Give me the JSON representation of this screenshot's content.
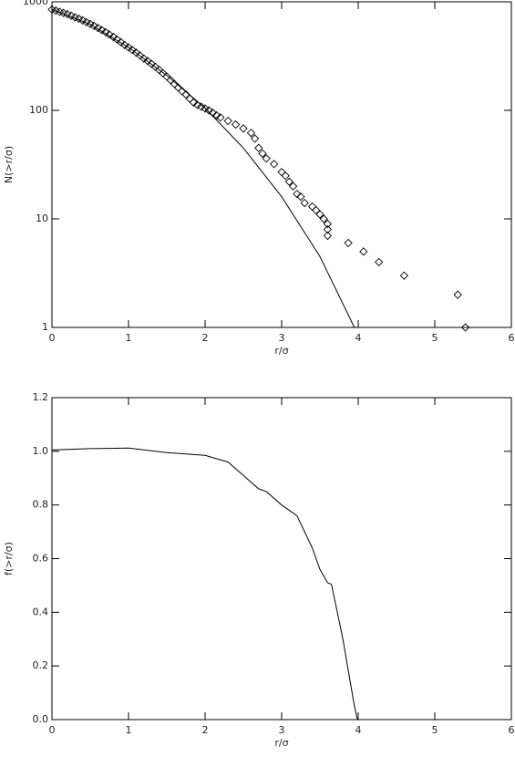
{
  "chart_data": [
    {
      "type": "scatter",
      "xlabel": "r/σ",
      "ylabel": "N(>r/σ)",
      "ylog": true,
      "xlim": [
        0,
        6
      ],
      "ylim": [
        1,
        1000
      ],
      "xticks": [
        0,
        1,
        2,
        3,
        4,
        5,
        6
      ],
      "yticks": [
        1,
        10,
        100,
        1000
      ],
      "series": [
        {
          "color": "#000000",
          "marker": "diamond",
          "x": [
            0.0,
            0.05,
            0.1,
            0.15,
            0.2,
            0.25,
            0.3,
            0.35,
            0.4,
            0.45,
            0.5,
            0.55,
            0.6,
            0.65,
            0.7,
            0.75,
            0.8,
            0.85,
            0.9,
            0.95,
            1.0,
            1.05,
            1.1,
            1.15,
            1.2,
            1.25,
            1.3,
            1.35,
            1.4,
            1.45,
            1.5,
            1.55,
            1.6,
            1.65,
            1.7,
            1.75,
            1.8,
            1.85,
            1.9,
            1.95,
            2.0,
            2.05,
            2.1,
            2.15,
            2.2,
            2.3,
            2.4,
            2.5,
            2.6,
            2.65,
            2.7,
            2.75,
            2.8,
            2.9,
            3.0,
            3.05,
            3.1,
            3.15,
            3.2,
            3.25,
            3.3,
            3.4,
            3.45,
            3.5,
            3.55,
            3.6,
            3.6,
            3.6,
            3.87,
            4.07,
            4.27,
            4.6,
            5.3,
            5.4
          ],
          "values": [
            850,
            830,
            810,
            790,
            770,
            745,
            720,
            700,
            675,
            650,
            625,
            600,
            575,
            550,
            525,
            500,
            475,
            450,
            425,
            400,
            380,
            360,
            340,
            320,
            300,
            285,
            268,
            252,
            236,
            220,
            205,
            190,
            175,
            162,
            150,
            140,
            128,
            118,
            112,
            108,
            104,
            100,
            95,
            90,
            86,
            80,
            74,
            68,
            62,
            55,
            45,
            40,
            36,
            32,
            27,
            25,
            22,
            20,
            17,
            16,
            14,
            13,
            12,
            11,
            10,
            9,
            8,
            7,
            6,
            5,
            4,
            3,
            2,
            1
          ]
        },
        {
          "color": "#000000",
          "marker": "line",
          "x": [
            0,
            0.5,
            1,
            1.5,
            2,
            2.5,
            3,
            3.5,
            3.95
          ],
          "values": [
            850,
            620,
            380,
            210,
            105,
            45,
            16,
            4.5,
            1
          ]
        }
      ]
    },
    {
      "type": "line",
      "xlabel": "r/σ",
      "ylabel": "f(>r/σ)",
      "xlim": [
        0,
        6
      ],
      "ylim": [
        0,
        1.2
      ],
      "xticks": [
        0,
        1,
        2,
        3,
        4,
        5,
        6
      ],
      "yticks": [
        {
          "value": 0,
          "label": "0.0"
        },
        0.2,
        0.4,
        0.6,
        0.8,
        {
          "value": 1,
          "label": "1.0"
        },
        1.2
      ],
      "series": [
        {
          "color": "#000000",
          "x": [
            0,
            0.5,
            1,
            1.5,
            2,
            2.3,
            2.5,
            2.7,
            2.8,
            3,
            3.2,
            3.4,
            3.5,
            3.6,
            3.65,
            3.8,
            3.95,
            3.99
          ],
          "values": [
            1.005,
            1.01,
            1.012,
            0.995,
            0.985,
            0.96,
            0.91,
            0.86,
            0.85,
            0.8,
            0.76,
            0.64,
            0.56,
            0.51,
            0.505,
            0.3,
            0.05,
            0
          ]
        }
      ]
    }
  ]
}
